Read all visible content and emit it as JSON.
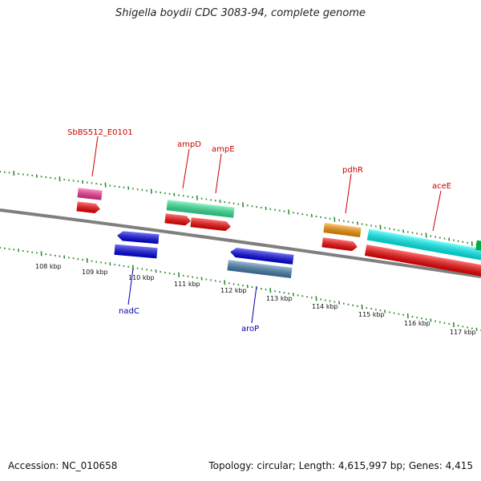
{
  "title": "Shigella boydii CDC 3083-94, complete genome",
  "footer": {
    "accession": "Accession: NC_010658",
    "stats": "Topology: circular; Length: 4,615,997 bp; Genes: 4,415"
  },
  "colors": {
    "backbone": "#7f7f7f",
    "tick": "#2e8b2e",
    "cds_red": "#ff0000",
    "gene_pink": "#ff3399",
    "gene_green": "#33ee99",
    "gene_orange": "#ff9900",
    "gene_cyan": "#00ffff",
    "gene_blue": "#0000ee",
    "gene_steel": "#4682b4",
    "label_forward": "#cc0000",
    "label_reverse": "#0000aa"
  },
  "kbp_labels": [
    "108 kbp",
    "109 kbp",
    "110 kbp",
    "111 kbp",
    "112 kbp",
    "113 kbp",
    "114 kbp",
    "115 kbp",
    "116 kbp",
    "117 kbp"
  ],
  "gene_labels": {
    "SbBS512_E0101": "SbBS512_E0101",
    "ampD": "ampD",
    "ampE": "ampE",
    "pdhR": "pdhR",
    "aceE": "aceE",
    "nadC": "nadC",
    "aroP": "aroP"
  }
}
